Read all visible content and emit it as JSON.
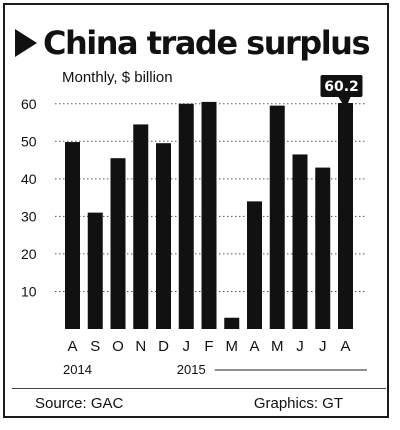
{
  "title": "China trade surplus",
  "subtitle": "Monthly, $ billion",
  "footer": {
    "source": "Source: GAC",
    "credit": "Graphics: GT"
  },
  "chart_data": {
    "type": "bar",
    "categories": [
      "A",
      "S",
      "O",
      "N",
      "D",
      "J",
      "F",
      "M",
      "A",
      "M",
      "J",
      "J",
      "A"
    ],
    "years": [
      {
        "label": "2014",
        "start_index": 0
      },
      {
        "label": "2015",
        "start_index": 5
      }
    ],
    "values": [
      49.8,
      31.0,
      45.5,
      54.5,
      49.5,
      60.0,
      60.5,
      3.0,
      34.0,
      59.5,
      46.5,
      43.0,
      60.2
    ],
    "yticks": [
      10,
      20,
      30,
      40,
      50,
      60
    ],
    "ylim": [
      0,
      65
    ],
    "grid": true,
    "bar_color": "#111111",
    "callout": {
      "index": 12,
      "label": "60.2"
    }
  }
}
